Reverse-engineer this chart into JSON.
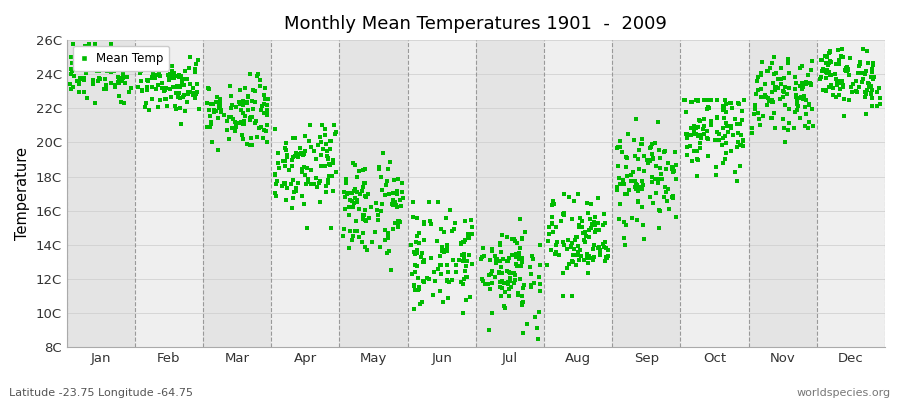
{
  "title": "Monthly Mean Temperatures 1901  -  2009",
  "ylabel": "Temperature",
  "subtitle": "Latitude -23.75 Longitude -64.75",
  "watermark": "worldspecies.org",
  "legend_label": "Mean Temp",
  "marker_color": "#00BB00",
  "marker_size": 3.5,
  "ylim": [
    8,
    26
  ],
  "ytick_labels": [
    "8C",
    "10C",
    "12C",
    "14C",
    "16C",
    "18C",
    "20C",
    "22C",
    "24C",
    "26C"
  ],
  "ytick_values": [
    8,
    10,
    12,
    14,
    16,
    18,
    20,
    22,
    24,
    26
  ],
  "months": [
    "Jan",
    "Feb",
    "Mar",
    "Apr",
    "May",
    "Jun",
    "Jul",
    "Aug",
    "Sep",
    "Oct",
    "Nov",
    "Dec"
  ],
  "bg_color": "#ffffff",
  "plot_bg_color": "#f0f0f0",
  "band_color_dark": "#e4e4e4",
  "band_color_light": "#efefef",
  "monthly_mean_temps": [
    24.2,
    23.5,
    21.8,
    18.8,
    16.2,
    13.2,
    12.5,
    14.2,
    17.8,
    20.8,
    22.8,
    23.8
  ],
  "monthly_std": [
    0.8,
    0.9,
    1.0,
    1.3,
    1.5,
    1.5,
    1.5,
    1.3,
    1.5,
    1.2,
    1.0,
    0.9
  ],
  "monthly_min": [
    21.5,
    20.5,
    18.0,
    15.0,
    12.5,
    10.0,
    8.5,
    11.0,
    14.0,
    17.0,
    20.0,
    21.0
  ],
  "monthly_max": [
    25.8,
    25.2,
    24.0,
    21.0,
    19.5,
    16.5,
    17.0,
    17.0,
    23.5,
    22.5,
    25.0,
    25.5
  ],
  "n_years": 109,
  "dashed_line_color": "#999999",
  "grid_line_color": "#cccccc"
}
